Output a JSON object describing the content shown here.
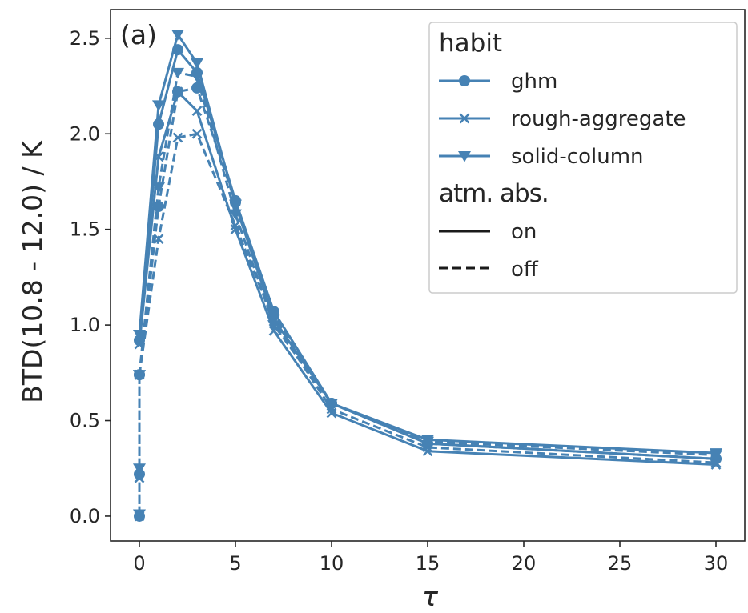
{
  "chart_data": {
    "type": "line",
    "panel_label": "(a)",
    "xlabel": "τ",
    "ylabel": "BTD(10.8 - 12.0) / K",
    "xlim": [
      -1.5,
      31.5
    ],
    "ylim": [
      -0.13,
      2.65
    ],
    "xticks": [
      0,
      5,
      10,
      15,
      20,
      25,
      30
    ],
    "yticks": [
      0.0,
      0.5,
      1.0,
      1.5,
      2.0,
      2.5
    ],
    "x": [
      0,
      1,
      2,
      3,
      5,
      7,
      10,
      15,
      30
    ],
    "line_color": "#4682b4",
    "legend": {
      "placement": "top-right",
      "habit_title": "habit",
      "habit_entries": [
        {
          "name": "ghm",
          "marker": "circle"
        },
        {
          "name": "rough-aggregate",
          "marker": "x"
        },
        {
          "name": "solid-column",
          "marker": "triangle-down"
        }
      ],
      "abs_title": "atm. abs.",
      "abs_entries": [
        {
          "name": "on",
          "style": "solid"
        },
        {
          "name": "off",
          "style": "dashed"
        }
      ]
    },
    "series": [
      {
        "habit": "ghm",
        "atm_abs": "on",
        "marker": "circle",
        "dash": false,
        "values": [
          0.92,
          2.05,
          2.44,
          2.32,
          1.65,
          1.07,
          0.59,
          0.38,
          0.3
        ]
      },
      {
        "habit": "rough-aggregate",
        "atm_abs": "on",
        "marker": "x",
        "dash": false,
        "values": [
          0.9,
          1.88,
          2.22,
          2.12,
          1.5,
          0.97,
          0.54,
          0.34,
          0.27
        ]
      },
      {
        "habit": "solid-column",
        "atm_abs": "on",
        "marker": "triangle-down",
        "dash": false,
        "values": [
          0.95,
          2.15,
          2.52,
          2.37,
          1.63,
          1.03,
          0.59,
          0.4,
          0.33
        ]
      },
      {
        "habit": "ghm",
        "atm_abs": "off",
        "marker": "circle",
        "dash": true,
        "values": [
          0.74,
          1.62,
          2.22,
          2.24,
          1.64,
          1.05,
          0.59,
          0.38,
          0.3
        ]
      },
      {
        "habit": "rough-aggregate",
        "atm_abs": "off",
        "marker": "x",
        "dash": true,
        "values": [
          0.74,
          1.45,
          1.98,
          2.0,
          1.52,
          1.02,
          0.56,
          0.36,
          0.28
        ]
      },
      {
        "habit": "solid-column",
        "atm_abs": "off",
        "marker": "triangle-down",
        "dash": true,
        "values": [
          0.74,
          1.72,
          2.32,
          2.3,
          1.58,
          1.0,
          0.59,
          0.39,
          0.32
        ]
      },
      {
        "habit": "ghm",
        "atm_abs": "off",
        "marker": "circle",
        "dash": true,
        "x": [
          0,
          0,
          0
        ],
        "values": [
          0.0,
          0.22,
          0.74
        ]
      },
      {
        "habit": "rough-aggregate",
        "atm_abs": "off",
        "marker": "x",
        "dash": true,
        "x": [
          0,
          0,
          0
        ],
        "values": [
          0.0,
          0.2,
          0.74
        ]
      },
      {
        "habit": "solid-column",
        "atm_abs": "off",
        "marker": "triangle-down",
        "dash": true,
        "x": [
          0,
          0,
          0
        ],
        "values": [
          0.01,
          0.25,
          0.74
        ]
      }
    ]
  }
}
